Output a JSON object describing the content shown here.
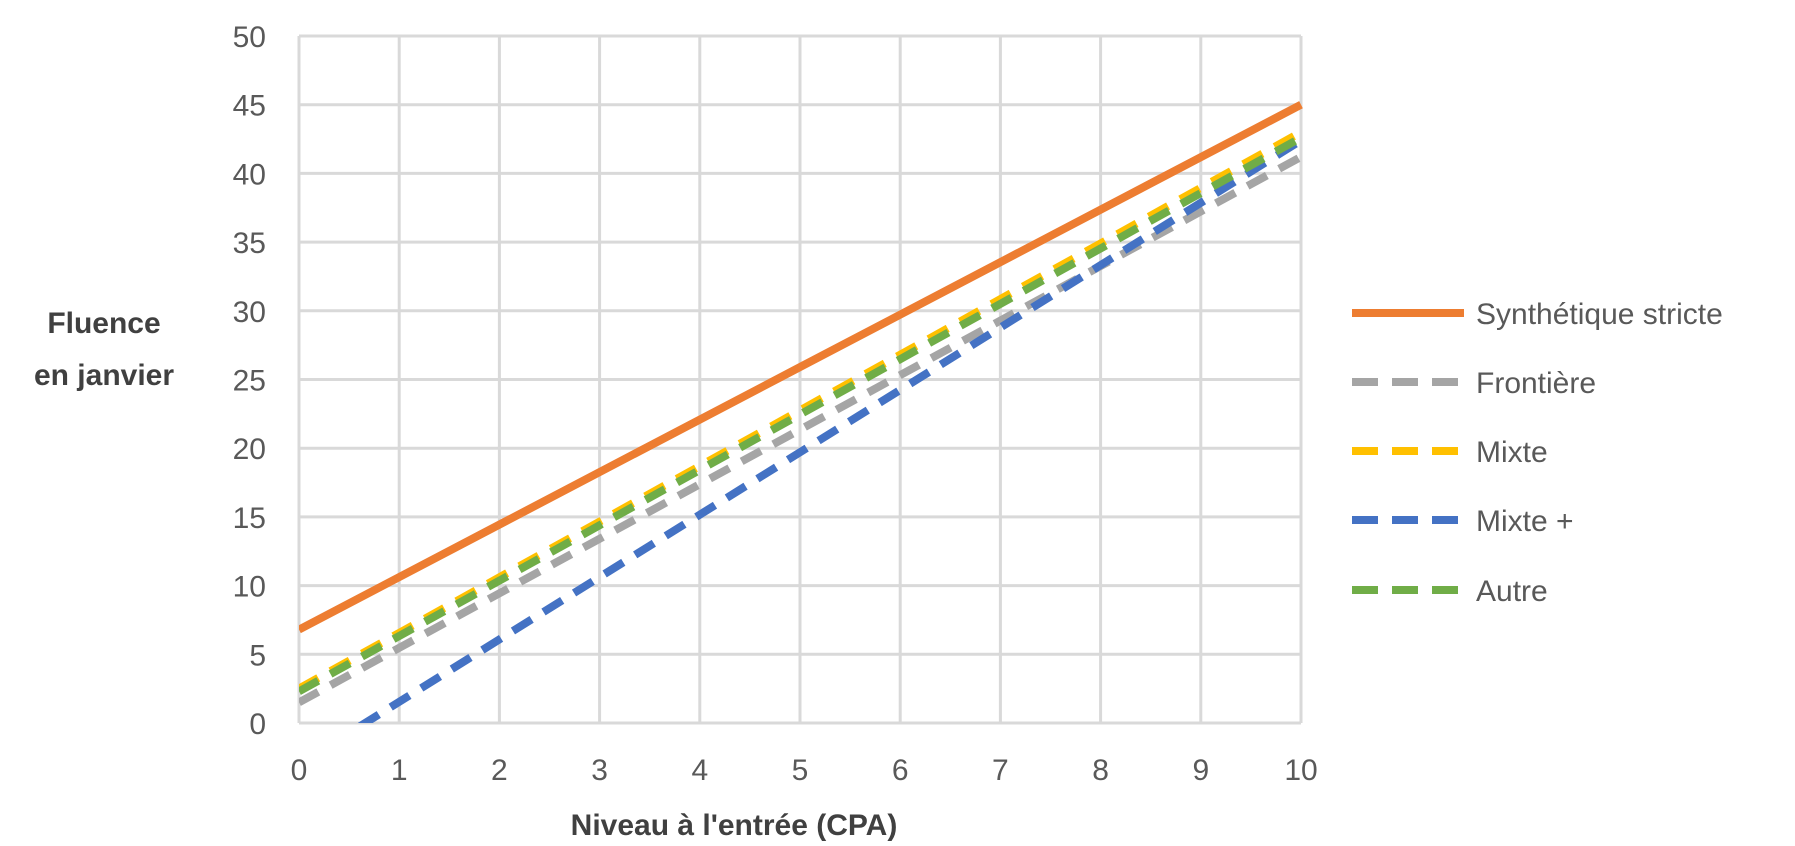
{
  "chart_data": {
    "type": "line",
    "title": "",
    "xlabel": "Niveau à l'entrée (CPA)",
    "ylabel_lines": [
      "Fluence",
      "en janvier"
    ],
    "x_ticks": [
      "0",
      "1",
      "2",
      "3",
      "4",
      "5",
      "6",
      "7",
      "8",
      "9",
      "10"
    ],
    "y_ticks": [
      "0",
      "5",
      "10",
      "15",
      "20",
      "25",
      "30",
      "35",
      "40",
      "45",
      "50"
    ],
    "xlim": [
      0,
      10
    ],
    "ylim": [
      0,
      50
    ],
    "grid": true,
    "legend_position": "right",
    "series": [
      {
        "name": "Synthétique stricte",
        "color": "#ED7D31",
        "dash": "solid",
        "x": [
          0,
          5,
          10
        ],
        "y": [
          6.8,
          25.9,
          45.0
        ]
      },
      {
        "name": "Frontière",
        "color": "#A5A5A5",
        "dash": "dashed",
        "x": [
          0,
          10
        ],
        "y": [
          1.5,
          41.2
        ]
      },
      {
        "name": "Mixte",
        "color": "#FFC000",
        "dash": "dashed",
        "x": [
          0,
          10
        ],
        "y": [
          2.5,
          43.0
        ]
      },
      {
        "name": "Mixte +",
        "color": "#4472C4",
        "dash": "dashed",
        "x": [
          0,
          10
        ],
        "y": [
          -3.0,
          42.4
        ]
      },
      {
        "name": "Autre",
        "color": "#70AD47",
        "dash": "dashed",
        "x": [
          0,
          10
        ],
        "y": [
          2.3,
          42.6
        ]
      }
    ]
  }
}
